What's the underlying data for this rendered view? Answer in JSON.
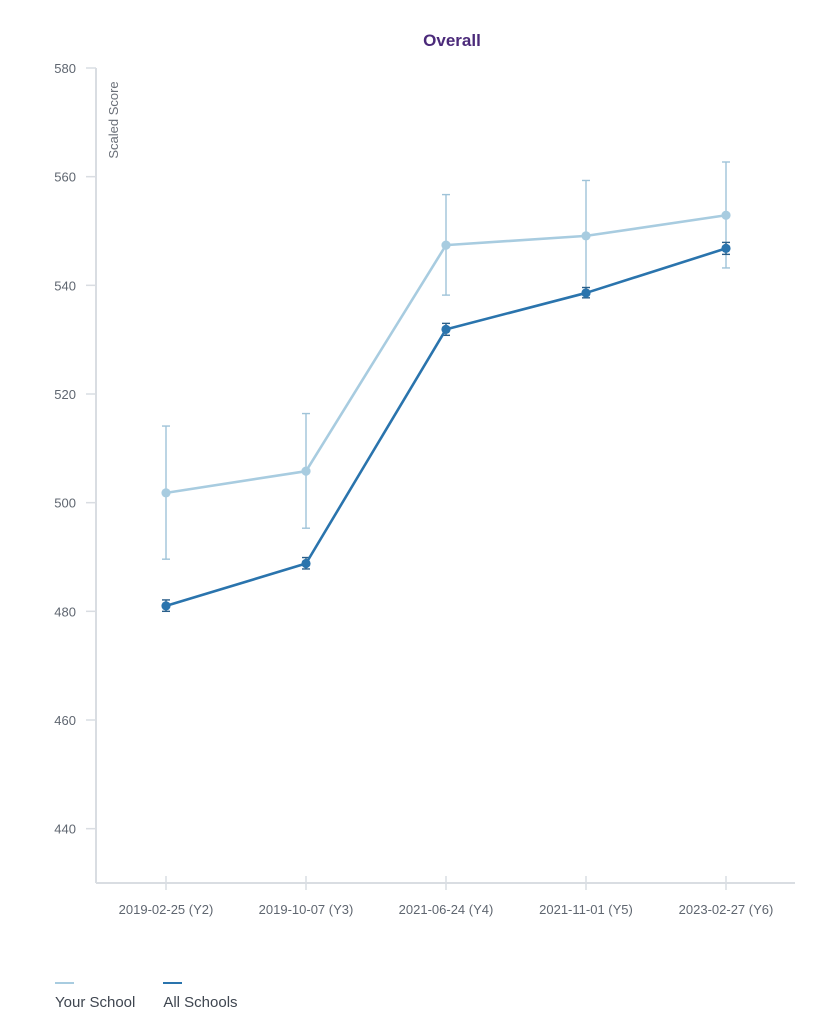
{
  "chart_data": {
    "type": "line",
    "title": "Overall",
    "ylabel": "Scaled Score",
    "xlabel": "",
    "categories": [
      "2019-02-25 (Y2)",
      "2019-10-07 (Y3)",
      "2021-06-24 (Y4)",
      "2021-11-01 (Y5)",
      "2023-02-27 (Y6)"
    ],
    "ylim": [
      430,
      580
    ],
    "yticks": [
      440,
      460,
      480,
      500,
      520,
      540,
      560,
      580
    ],
    "grid": false,
    "legend_position": "bottom-left",
    "series": [
      {
        "name": "Your School",
        "color": "#a8cce0",
        "values": [
          501.8,
          505.8,
          547.4,
          549.1,
          552.9
        ],
        "error_low": [
          489.6,
          495.3,
          538.2,
          538.8,
          543.2
        ],
        "error_high": [
          514.1,
          516.4,
          556.7,
          559.3,
          562.7
        ]
      },
      {
        "name": "All Schools",
        "color": "#2a74ad",
        "values": [
          481.0,
          488.8,
          531.9,
          538.6,
          546.8
        ],
        "error_low": [
          480.0,
          487.8,
          530.8,
          537.7,
          545.7
        ],
        "error_high": [
          482.1,
          489.9,
          533.0,
          539.6,
          547.9
        ]
      }
    ]
  },
  "styles": {
    "title_color": "#4b2a7a",
    "axis_color": "#d9dde2"
  }
}
